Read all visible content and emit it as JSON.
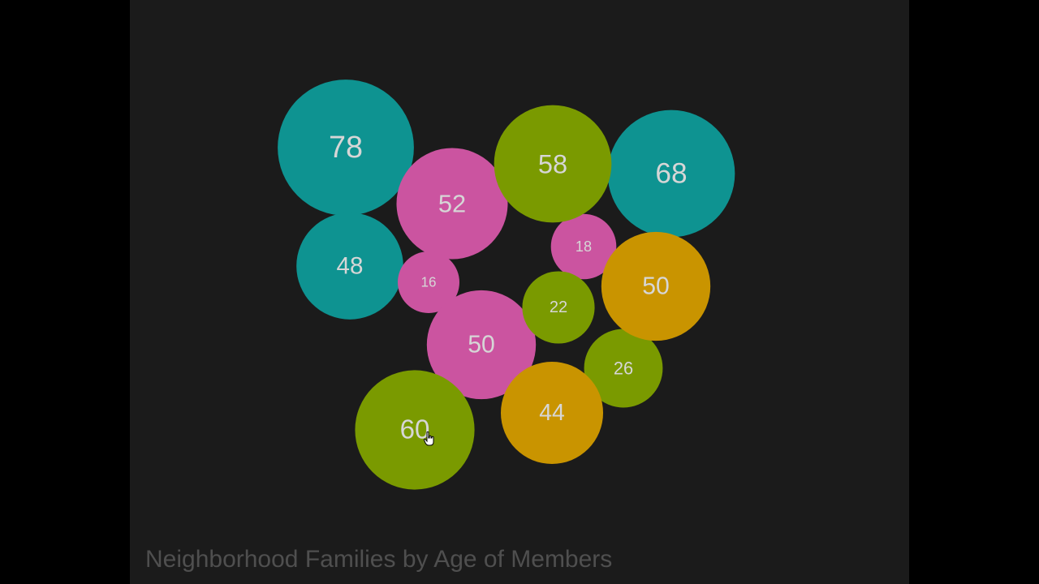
{
  "chart_data": {
    "type": "bubble",
    "title": "Neighborhood Families by Age of Members",
    "groups": [
      {
        "color": "#0e9391",
        "values": [
          78,
          68,
          48
        ]
      },
      {
        "color": "#cb54a0",
        "values": [
          52,
          16,
          50,
          18
        ]
      },
      {
        "color": "#7a9a00",
        "values": [
          58,
          22,
          60,
          26
        ]
      },
      {
        "color": "#c99400",
        "values": [
          50,
          44
        ]
      }
    ],
    "label_color": "#d6d6d6",
    "background": "#1b1b1b"
  }
}
